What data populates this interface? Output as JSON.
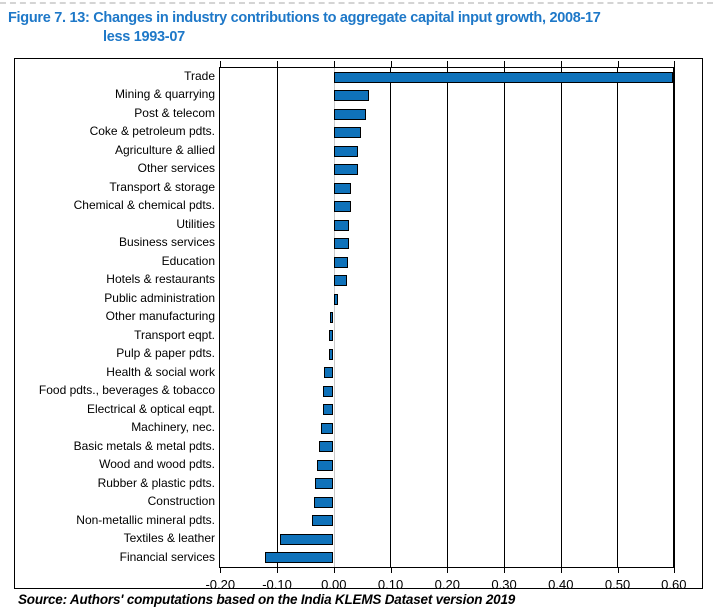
{
  "title": {
    "line1": "Figure 7. 13: Changes in industry contributions to aggregate capital input growth, 2008-17",
    "line2": "less 1993-07"
  },
  "source": "Source: Authors' computations based on the India KLEMS Dataset version 2019",
  "colors": {
    "title_blue": "#1E78C8",
    "bar_fill": "#0F72BA",
    "bar_border": "#000000",
    "axis": "#000000",
    "gridline": "#000000",
    "zero_line": "#c9c9c9"
  },
  "chart_data": {
    "type": "bar",
    "orientation": "horizontal",
    "title": "Figure 7. 13: Changes in industry contributions to aggregate capital input growth, 2008-17 less 1993-07",
    "categories": [
      "Trade",
      "Mining & quarrying",
      "Post & telecom",
      "Coke & petroleum pdts.",
      "Agriculture & allied",
      "Other services",
      "Transport & storage",
      "Chemical & chemical pdts.",
      "Utilities",
      "Business services",
      "Education",
      "Hotels & restaurants",
      "Public administration",
      "Other manufacturing",
      "Transport eqpt.",
      "Pulp & paper pdts.",
      "Health & social work",
      "Food pdts., beverages & tobacco",
      "Electrical & optical eqpt.",
      "Machinery, nec.",
      "Basic metals & metal pdts.",
      "Wood and wood pdts.",
      "Rubber & plastic pdts.",
      "Construction",
      "Non-metallic mineral pdts.",
      "Textiles & leather",
      "Financial services"
    ],
    "values": [
      0.598,
      0.063,
      0.058,
      0.049,
      0.044,
      0.044,
      0.031,
      0.031,
      0.027,
      0.027,
      0.025,
      0.023,
      0.008,
      -0.007,
      -0.008,
      -0.008,
      -0.016,
      -0.018,
      -0.018,
      -0.022,
      -0.025,
      -0.029,
      -0.032,
      -0.035,
      -0.038,
      -0.094,
      -0.12
    ],
    "xlabel": "",
    "ylabel": "",
    "xlim": [
      -0.2,
      0.6
    ],
    "xticks": [
      -0.2,
      -0.1,
      0.0,
      0.1,
      0.2,
      0.3,
      0.4,
      0.5,
      0.6
    ],
    "xtick_labels": [
      "-0.20",
      "-0.10",
      "0.00",
      "0.10",
      "0.20",
      "0.30",
      "0.40",
      "0.50",
      "0.60"
    ],
    "grid": "vertical-major",
    "legend": false,
    "source": "Source: Authors' computations based on the India KLEMS Dataset version 2019"
  }
}
